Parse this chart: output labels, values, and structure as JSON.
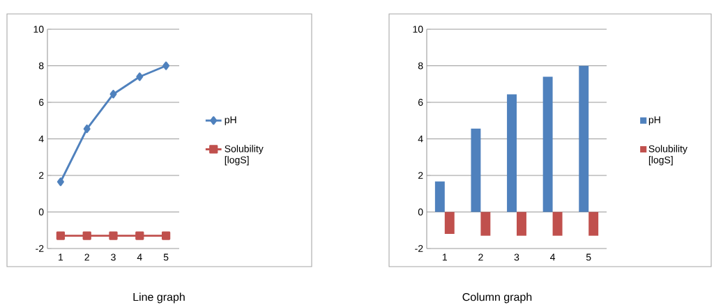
{
  "chart_data": [
    {
      "type": "line",
      "title": "Line graph",
      "categories": [
        "1",
        "2",
        "3",
        "4",
        "5"
      ],
      "series": [
        {
          "name": "pH",
          "color": "#4f81bd",
          "marker": "diamond",
          "values": [
            1.65,
            4.55,
            6.45,
            7.4,
            8.0
          ]
        },
        {
          "name": "Solubility [logS]",
          "color": "#c0504d",
          "marker": "square",
          "values": [
            -1.3,
            -1.3,
            -1.3,
            -1.3,
            -1.3
          ]
        }
      ],
      "ylim": [
        -2,
        10
      ],
      "yticks": [
        -2,
        0,
        2,
        4,
        6,
        8,
        10
      ],
      "grid": "y",
      "legend": "right"
    },
    {
      "type": "bar",
      "title": "Column graph",
      "categories": [
        "1",
        "2",
        "3",
        "4",
        "5"
      ],
      "series": [
        {
          "name": "pH",
          "color": "#4f81bd",
          "values": [
            1.67,
            4.56,
            6.44,
            7.4,
            8.0
          ]
        },
        {
          "name": "Solubility [logS]",
          "color": "#c0504d",
          "values": [
            -1.2,
            -1.3,
            -1.3,
            -1.3,
            -1.3
          ]
        }
      ],
      "ylim": [
        -2,
        10
      ],
      "yticks": [
        -2,
        0,
        2,
        4,
        6,
        8,
        10
      ],
      "grid": "y",
      "legend": "right"
    }
  ]
}
